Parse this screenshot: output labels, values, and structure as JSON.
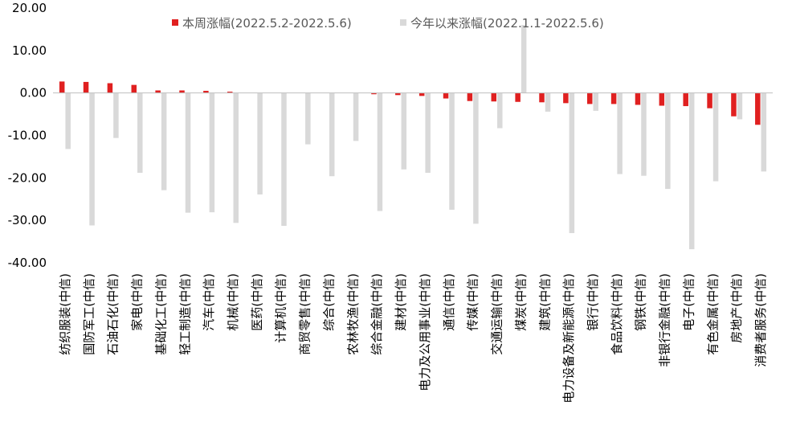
{
  "chart_data": {
    "type": "bar",
    "categories": [
      "纺织服装(中信)",
      "国防军工(中信)",
      "石油石化(中信)",
      "家电(中信)",
      "基础化工(中信)",
      "轻工制造(中信)",
      "汽车(中信)",
      "机械(中信)",
      "医药(中信)",
      "计算机(中信)",
      "商贸零售(中信)",
      "综合(中信)",
      "农林牧渔(中信)",
      "综合金融(中信)",
      "建材(中信)",
      "电力及公用事业(中信)",
      "通信(中信)",
      "传媒(中信)",
      "交通运输(中信)",
      "煤炭(中信)",
      "建筑(中信)",
      "电力设备及新能源(中信)",
      "银行(中信)",
      "食品饮料(中信)",
      "钢铁(中信)",
      "非银行金融(中信)",
      "电子(中信)",
      "有色金属(中信)",
      "房地产(中信)",
      "消费者服务(中信)"
    ],
    "series": [
      {
        "name": "本周涨幅(2022.5.2-2022.5.6)",
        "color": "#e02020",
        "values": [
          2.7,
          2.6,
          2.3,
          1.9,
          0.6,
          0.6,
          0.5,
          0.3,
          0.0,
          0.0,
          0.0,
          0.0,
          0.0,
          -0.3,
          -0.5,
          -0.7,
          -1.3,
          -1.9,
          -2.0,
          -2.1,
          -2.2,
          -2.4,
          -2.6,
          -2.6,
          -2.8,
          -3.0,
          -3.1,
          -3.6,
          -5.5,
          -7.5
        ]
      },
      {
        "name": "今年以来涨幅(2022.1.1-2022.5.6)",
        "color": "#d9d9d9",
        "values": [
          -13.2,
          -31.2,
          -10.6,
          -18.8,
          -22.9,
          -28.2,
          -28.1,
          -30.6,
          -23.9,
          -31.3,
          -12.1,
          -19.6,
          -11.3,
          -27.8,
          -18.0,
          -18.8,
          -27.5,
          -30.8,
          -8.3,
          16.0,
          -4.4,
          -33.0,
          -4.2,
          -19.1,
          -19.5,
          -22.6,
          -36.8,
          -20.8,
          -6.2,
          -18.5
        ]
      }
    ],
    "yticks": [
      "20.00",
      "10.00",
      "0.00",
      "-10.00",
      "-20.00",
      "-30.00",
      "-40.00"
    ],
    "ylim": [
      -40,
      20
    ],
    "grid": false,
    "legend_position": "top"
  }
}
